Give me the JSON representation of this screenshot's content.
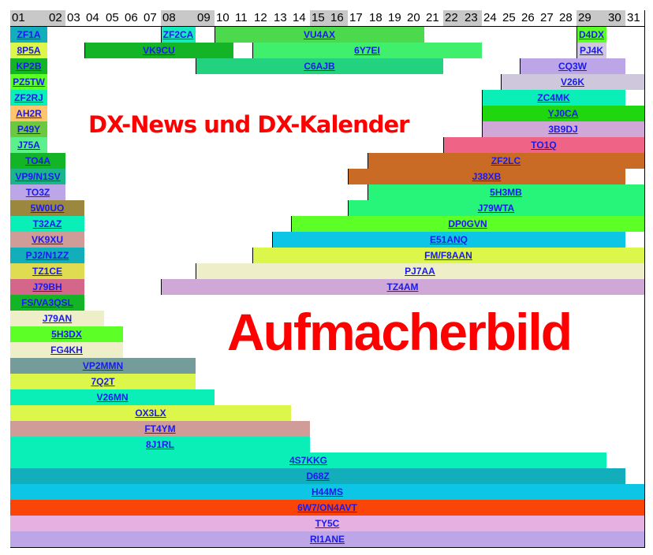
{
  "header": {
    "days": [
      "01",
      "02",
      "03",
      "04",
      "05",
      "06",
      "07",
      "08",
      "09",
      "10",
      "11",
      "12",
      "13",
      "14",
      "15",
      "16",
      "17",
      "18",
      "19",
      "20",
      "21",
      "22",
      "23",
      "24",
      "25",
      "26",
      "27",
      "28",
      "29",
      "30",
      "31"
    ],
    "weekend_days": [
      "01",
      "02",
      "08",
      "09",
      "15",
      "16",
      "22",
      "23",
      "29",
      "30"
    ],
    "weekend_color": "#c8c8c8"
  },
  "overlays": {
    "title": "DX-News und DX-Kalender",
    "image_placeholder": "Aufmacherbild",
    "color": "#ff0000"
  },
  "rows": [
    [
      {
        "call": "ZF1A",
        "start": 1,
        "end": 1,
        "color": "#12aebb"
      },
      {
        "call": "ZF2CA",
        "start": 8,
        "end": 8,
        "color": "#17e8c0"
      },
      {
        "call": "VU4AX",
        "start": 10,
        "end": 20,
        "color": "#4cd94c"
      },
      {
        "call": "D4DX",
        "start": 29,
        "end": 29,
        "color": "#5cff26"
      }
    ],
    [
      {
        "call": "8P5A",
        "start": 1,
        "end": 1,
        "color": "#ddf64a"
      },
      {
        "call": "VK9CU",
        "start": 4,
        "end": 10,
        "color": "#13b527"
      },
      {
        "call": "6Y7EI",
        "start": 12,
        "end": 23,
        "color": "#40ef6b"
      },
      {
        "call": "PJ4K",
        "start": 29,
        "end": 29,
        "color": "#cfc8e0"
      }
    ],
    [
      {
        "call": "KP2B",
        "start": 1,
        "end": 1,
        "color": "#13b527"
      },
      {
        "call": "C6AJB",
        "start": 9,
        "end": 21,
        "color": "#22d27f"
      },
      {
        "call": "CQ3W",
        "start": 26,
        "end": 30,
        "color": "#bda6e8"
      }
    ],
    [
      {
        "call": "PZ5TW",
        "start": 1,
        "end": 1,
        "color": "#5cff26"
      },
      {
        "call": "V26K",
        "start": 25,
        "end": 31,
        "color": "#cfc8dc"
      }
    ],
    [
      {
        "call": "ZF2RJ",
        "start": 1,
        "end": 1,
        "color": "#0aefb8"
      },
      {
        "call": "ZC4MK",
        "start": 24,
        "end": 30,
        "color": "#0aefb8"
      }
    ],
    [
      {
        "call": "AH2R",
        "start": 1,
        "end": 1,
        "color": "#ffc46c"
      },
      {
        "call": "YJ0CA",
        "start": 24,
        "end": 31,
        "color": "#1fd60f"
      }
    ],
    [
      {
        "call": "P49Y",
        "start": 1,
        "end": 1,
        "color": "#6cc83e"
      },
      {
        "call": "3B9DJ",
        "start": 24,
        "end": 31,
        "color": "#d0a8d8"
      }
    ],
    [
      {
        "call": "J75A",
        "start": 1,
        "end": 1,
        "color": "#5cf08c"
      },
      {
        "call": "TO1Q",
        "start": 22,
        "end": 31,
        "color": "#ef6386"
      }
    ],
    [
      {
        "call": "TO4A",
        "start": 1,
        "end": 2,
        "color": "#13b527"
      },
      {
        "call": "ZF2LC",
        "start": 18,
        "end": 31,
        "color": "#c96b25"
      }
    ],
    [
      {
        "call": "VP9/N1SV",
        "start": 1,
        "end": 2,
        "color": "#1bb58a"
      },
      {
        "call": "J38XB",
        "start": 17,
        "end": 30,
        "color": "#c96b25"
      }
    ],
    [
      {
        "call": "TO3Z",
        "start": 1,
        "end": 2,
        "color": "#bda6e8"
      },
      {
        "call": "5H3MB",
        "start": 18,
        "end": 31,
        "color": "#26f57a"
      }
    ],
    [
      {
        "call": "5W0UO",
        "start": 1,
        "end": 3,
        "color": "#9b873e"
      },
      {
        "call": "J79WTA",
        "start": 17,
        "end": 31,
        "color": "#26f57a"
      }
    ],
    [
      {
        "call": "T32AZ",
        "start": 1,
        "end": 3,
        "color": "#0aefb8"
      },
      {
        "call": "DP0GVN",
        "start": 14,
        "end": 31,
        "color": "#5cff26"
      }
    ],
    [
      {
        "call": "VK9XU",
        "start": 1,
        "end": 3,
        "color": "#d09c98"
      },
      {
        "call": "E51ANQ",
        "start": 13,
        "end": 30,
        "color": "#0dc6e5"
      }
    ],
    [
      {
        "call": "PJ2/N1ZZ",
        "start": 1,
        "end": 3,
        "color": "#12aebb"
      },
      {
        "call": "FM/F8AAN",
        "start": 12,
        "end": 31,
        "color": "#ddf64a"
      }
    ],
    [
      {
        "call": "TZ1CE",
        "start": 1,
        "end": 3,
        "color": "#e0dc52"
      },
      {
        "call": "PJ7AA",
        "start": 9,
        "end": 31,
        "color": "#eeeec8"
      }
    ],
    [
      {
        "call": "J79BH",
        "start": 1,
        "end": 3,
        "color": "#d4668a"
      },
      {
        "call": "TZ4AM",
        "start": 8,
        "end": 31,
        "color": "#d0a8d8"
      }
    ],
    [
      {
        "call": "FS/VA3QSL",
        "start": 1,
        "end": 3,
        "color": "#13b527"
      }
    ],
    [
      {
        "call": "J79AN",
        "start": 1,
        "end": 4,
        "color": "#eeeec8"
      }
    ],
    [
      {
        "call": "5H3DX",
        "start": 1,
        "end": 5,
        "color": "#5cff26"
      }
    ],
    [
      {
        "call": "FG4KH",
        "start": 1,
        "end": 5,
        "color": "#eeeec8"
      }
    ],
    [
      {
        "call": "VP2MMN",
        "start": 1,
        "end": 8,
        "color": "#739c9a"
      }
    ],
    [
      {
        "call": "7Q2T",
        "start": 1,
        "end": 8,
        "color": "#ddf64a"
      }
    ],
    [
      {
        "call": "V26MN",
        "start": 1,
        "end": 9,
        "color": "#0aefb8"
      }
    ],
    [
      {
        "call": "OX3LX",
        "start": 1,
        "end": 13,
        "color": "#ddf64a"
      }
    ],
    [
      {
        "call": "FT4YM",
        "start": 1,
        "end": 14,
        "color": "#d09c98"
      }
    ],
    [
      {
        "call": "8J1RL",
        "start": 1,
        "end": 14,
        "color": "#0aefb8"
      }
    ],
    [
      {
        "call": "4S7KKG",
        "start": 1,
        "end": 29,
        "color": "#0aefb8"
      }
    ],
    [
      {
        "call": "D68Z",
        "start": 1,
        "end": 30,
        "color": "#12aebb"
      }
    ],
    [
      {
        "call": "H44MS",
        "start": 1,
        "end": 31,
        "color": "#0dc6e5"
      }
    ],
    [
      {
        "call": "6W7/ON4AVT",
        "start": 1,
        "end": 31,
        "color": "#fa4408"
      }
    ],
    [
      {
        "call": "TY5C",
        "start": 1,
        "end": 31,
        "color": "#e6b0e0"
      }
    ],
    [
      {
        "call": "RI1ANE",
        "start": 1,
        "end": 31,
        "color": "#bda6e8"
      }
    ]
  ]
}
